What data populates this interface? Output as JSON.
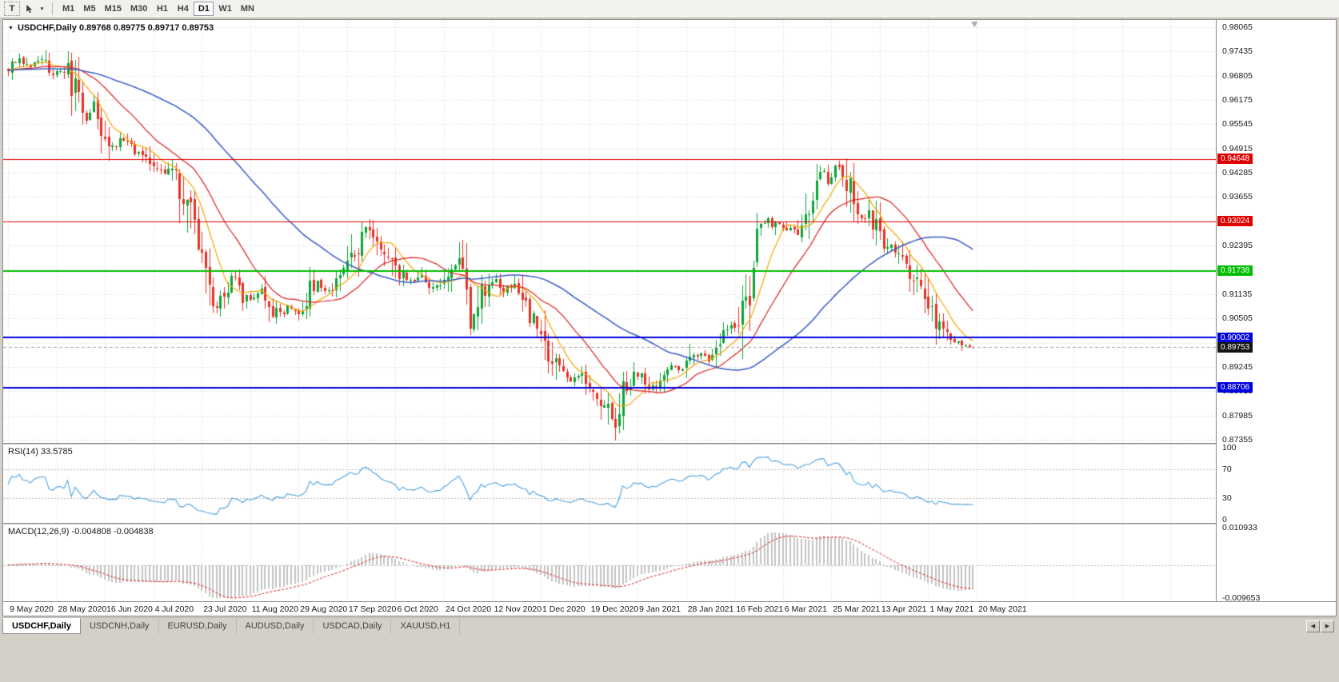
{
  "toolbar": {
    "text_tool_label": "T",
    "dropdown_glyph": "▾",
    "timeframes": [
      "M1",
      "M5",
      "M15",
      "M30",
      "H1",
      "H4",
      "D1",
      "W1",
      "MN"
    ],
    "active_timeframe": "D1"
  },
  "chart": {
    "symbol": "USDCHF",
    "period": "Daily",
    "collapse_glyph": "▼",
    "header_text": "USDCHF,Daily  0.89768 0.89775 0.89717 0.89753",
    "open": "0.89768",
    "high": "0.89775",
    "low": "0.89717",
    "close": "0.89753",
    "y_axis": {
      "max": 0.98065,
      "min": 0.87355,
      "step": 0.0063,
      "labels": [
        "0.98065",
        "0.97435",
        "0.96805",
        "0.96175",
        "0.95545",
        "0.94915",
        "0.94285",
        "0.93655",
        "0.93025",
        "0.92395",
        "0.91765",
        "0.91135",
        "0.90505",
        "0.89875",
        "0.89245",
        "0.88615",
        "0.87985",
        "0.87355"
      ]
    },
    "levels": [
      {
        "price": 0.94648,
        "label": "0.94648",
        "color": "#E00000",
        "line_width": 1
      },
      {
        "price": 0.93024,
        "label": "0.93024",
        "color": "#E00000",
        "line_width": 1
      },
      {
        "price": 0.91738,
        "label": "0.91738",
        "color": "#00BE00",
        "line_width": 2
      },
      {
        "price": 0.90002,
        "label": "0.90002",
        "color": "#0000DC",
        "line_width": 2
      },
      {
        "price": 0.88706,
        "label": "0.88706",
        "color": "#0000DC",
        "line_width": 2
      }
    ],
    "current_price": {
      "value": 0.89753,
      "label": "0.89753",
      "badge_color": "#151515",
      "line_color": "#A6A6A6"
    },
    "x_labels": [
      "9 May 2020",
      "28 May 2020",
      "16 Jun 2020",
      "4 Jul 2020",
      "23 Jul 2020",
      "11 Aug 2020",
      "29 Aug 2020",
      "17 Sep 2020",
      "6 Oct 2020",
      "24 Oct 2020",
      "12 Nov 2020",
      "1 Dec 2020",
      "19 Dec 2020",
      "9 Jan 2021",
      "28 Jan 2021",
      "16 Feb 2021",
      "6 Mar 2021",
      "25 Mar 2021",
      "13 Apr 2021",
      "1 May 2021",
      "20 May 2021"
    ],
    "colors": {
      "background": "#FFFFFF",
      "grid": "#D6D6D6",
      "candle_up": "#0CA438",
      "candle_down": "#E53224",
      "ma_fast": "#F5A800",
      "ma_mid": "#DC2020",
      "ma_slow": "#3A5BC7"
    }
  },
  "chart_data": {
    "type": "candlestick",
    "symbol": "USDCHF",
    "timeframe": "D1",
    "candle_count": 260,
    "visible_range": {
      "high": 0.9745,
      "low": 0.8757
    },
    "last_candle": {
      "open": 0.89768,
      "high": 0.89775,
      "low": 0.89717,
      "close": 0.89753
    },
    "horizontal_levels": [
      0.94648,
      0.93024,
      0.91738,
      0.90002,
      0.88706
    ],
    "moving_averages": [
      {
        "name": "fast",
        "period": 9,
        "color": "#F5A800"
      },
      {
        "name": "mid",
        "period": 21,
        "color": "#DC2020"
      },
      {
        "name": "slow",
        "period": 55,
        "color": "#3A5BC7"
      }
    ],
    "price_path": [
      [
        0.0,
        0.97
      ],
      [
        0.01,
        0.973
      ],
      [
        0.022,
        0.9695
      ],
      [
        0.035,
        0.972
      ],
      [
        0.047,
        0.9685
      ],
      [
        0.06,
        0.97
      ],
      [
        0.072,
        0.962
      ],
      [
        0.08,
        0.956
      ],
      [
        0.089,
        0.961
      ],
      [
        0.097,
        0.9545
      ],
      [
        0.109,
        0.9495
      ],
      [
        0.122,
        0.952
      ],
      [
        0.134,
        0.948
      ],
      [
        0.147,
        0.9465
      ],
      [
        0.159,
        0.943
      ],
      [
        0.167,
        0.9445
      ],
      [
        0.176,
        0.94
      ],
      [
        0.188,
        0.932
      ],
      [
        0.199,
        0.923
      ],
      [
        0.207,
        0.916
      ],
      [
        0.215,
        0.9085
      ],
      [
        0.224,
        0.911
      ],
      [
        0.234,
        0.9165
      ],
      [
        0.242,
        0.912
      ],
      [
        0.252,
        0.909
      ],
      [
        0.262,
        0.9125
      ],
      [
        0.272,
        0.908
      ],
      [
        0.282,
        0.906
      ],
      [
        0.292,
        0.909
      ],
      [
        0.3,
        0.905
      ],
      [
        0.31,
        0.911
      ],
      [
        0.32,
        0.915
      ],
      [
        0.33,
        0.912
      ],
      [
        0.34,
        0.914
      ],
      [
        0.35,
        0.9165
      ],
      [
        0.36,
        0.923
      ],
      [
        0.37,
        0.929
      ],
      [
        0.376,
        0.927
      ],
      [
        0.383,
        0.924
      ],
      [
        0.391,
        0.922
      ],
      [
        0.399,
        0.9185
      ],
      [
        0.408,
        0.916
      ],
      [
        0.418,
        0.9145
      ],
      [
        0.428,
        0.9155
      ],
      [
        0.437,
        0.912
      ],
      [
        0.447,
        0.9145
      ],
      [
        0.457,
        0.916
      ],
      [
        0.467,
        0.921
      ],
      [
        0.474,
        0.912
      ],
      [
        0.479,
        0.904
      ],
      [
        0.484,
        0.908
      ],
      [
        0.494,
        0.913
      ],
      [
        0.504,
        0.915
      ],
      [
        0.514,
        0.9125
      ],
      [
        0.524,
        0.914
      ],
      [
        0.533,
        0.91
      ],
      [
        0.543,
        0.905
      ],
      [
        0.553,
        0.901
      ],
      [
        0.563,
        0.894
      ],
      [
        0.573,
        0.8905
      ],
      [
        0.583,
        0.8885
      ],
      [
        0.593,
        0.8905
      ],
      [
        0.603,
        0.887
      ],
      [
        0.613,
        0.884
      ],
      [
        0.623,
        0.88
      ],
      [
        0.63,
        0.877
      ],
      [
        0.636,
        0.885
      ],
      [
        0.646,
        0.889
      ],
      [
        0.656,
        0.891
      ],
      [
        0.666,
        0.887
      ],
      [
        0.676,
        0.89
      ],
      [
        0.686,
        0.893
      ],
      [
        0.696,
        0.891
      ],
      [
        0.706,
        0.8935
      ],
      [
        0.716,
        0.8965
      ],
      [
        0.726,
        0.8945
      ],
      [
        0.736,
        0.8985
      ],
      [
        0.746,
        0.903
      ],
      [
        0.752,
        0.901
      ],
      [
        0.759,
        0.906
      ],
      [
        0.766,
        0.912
      ],
      [
        0.772,
        0.92
      ],
      [
        0.779,
        0.929
      ],
      [
        0.785,
        0.932
      ],
      [
        0.792,
        0.928
      ],
      [
        0.799,
        0.93
      ],
      [
        0.805,
        0.927
      ],
      [
        0.812,
        0.9295
      ],
      [
        0.819,
        0.926
      ],
      [
        0.825,
        0.931
      ],
      [
        0.832,
        0.937
      ],
      [
        0.838,
        0.941
      ],
      [
        0.845,
        0.943
      ],
      [
        0.852,
        0.94
      ],
      [
        0.858,
        0.945
      ],
      [
        0.865,
        0.942
      ],
      [
        0.872,
        0.938
      ],
      [
        0.878,
        0.934
      ],
      [
        0.885,
        0.931
      ],
      [
        0.891,
        0.933
      ],
      [
        0.898,
        0.929
      ],
      [
        0.905,
        0.9255
      ],
      [
        0.911,
        0.924
      ],
      [
        0.918,
        0.922
      ],
      [
        0.925,
        0.923
      ],
      [
        0.931,
        0.919
      ],
      [
        0.938,
        0.916
      ],
      [
        0.944,
        0.913
      ],
      [
        0.951,
        0.91
      ],
      [
        0.958,
        0.906
      ],
      [
        0.964,
        0.903
      ],
      [
        0.971,
        0.901
      ],
      [
        0.978,
        0.9
      ],
      [
        0.984,
        0.8985
      ],
      [
        0.991,
        0.899
      ],
      [
        0.997,
        0.8972
      ],
      [
        1.0,
        0.8975
      ]
    ]
  },
  "rsi": {
    "label": "RSI(14) 33.5785",
    "period": 14,
    "value": 33.5785,
    "color": "#4DA2DF",
    "level_lines": [
      70,
      30
    ],
    "axis": [
      {
        "label": "100",
        "value": 100
      },
      {
        "label": "70",
        "value": 70
      },
      {
        "label": "30",
        "value": 30
      },
      {
        "label": "0",
        "value": 0
      }
    ]
  },
  "macd": {
    "label": "MACD(12,26,9) -0.004808 -0.004838",
    "fast": 12,
    "slow": 26,
    "signal": 9,
    "macd_value": -0.004808,
    "signal_value": -0.004838,
    "axis_max": "0.010933",
    "axis_min": "-0.009653",
    "histogram_color": "#C4C4C4",
    "signal_color": "#DC2020",
    "zero_line_color": "#B8B8B8"
  },
  "tabs": {
    "items": [
      {
        "label": "USDCHF,Daily",
        "active": true
      },
      {
        "label": "USDCNH,Daily",
        "active": false
      },
      {
        "label": "EURUSD,Daily",
        "active": false
      },
      {
        "label": "AUDUSD,Daily",
        "active": false
      },
      {
        "label": "USDCAD,Daily",
        "active": false
      },
      {
        "label": "XAUUSD,H1",
        "active": false
      }
    ],
    "left_arrow": "◀",
    "right_arrow": "▶"
  }
}
